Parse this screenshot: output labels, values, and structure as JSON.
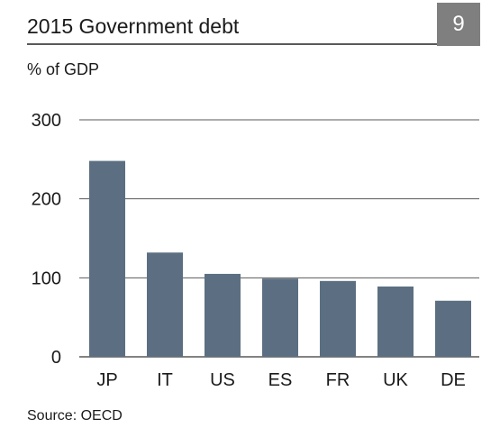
{
  "header": {
    "title": "2015 Government debt",
    "page_number": "9"
  },
  "unit_label": "% of GDP",
  "source": "Source: OECD",
  "colors": {
    "bar": "#5c6f82",
    "gridline": "#595959",
    "badge": "#7f7f7f"
  },
  "chart_data": {
    "type": "bar",
    "title": "2015 Government debt",
    "ylabel": "% of GDP",
    "xlabel": "",
    "categories": [
      "JP",
      "IT",
      "US",
      "ES",
      "FR",
      "UK",
      "DE"
    ],
    "values": [
      248,
      132,
      105,
      99,
      96,
      89,
      71
    ],
    "ylim": [
      0,
      300
    ],
    "yticks": [
      0,
      100,
      200,
      300
    ],
    "grid": true,
    "legend": "none"
  }
}
